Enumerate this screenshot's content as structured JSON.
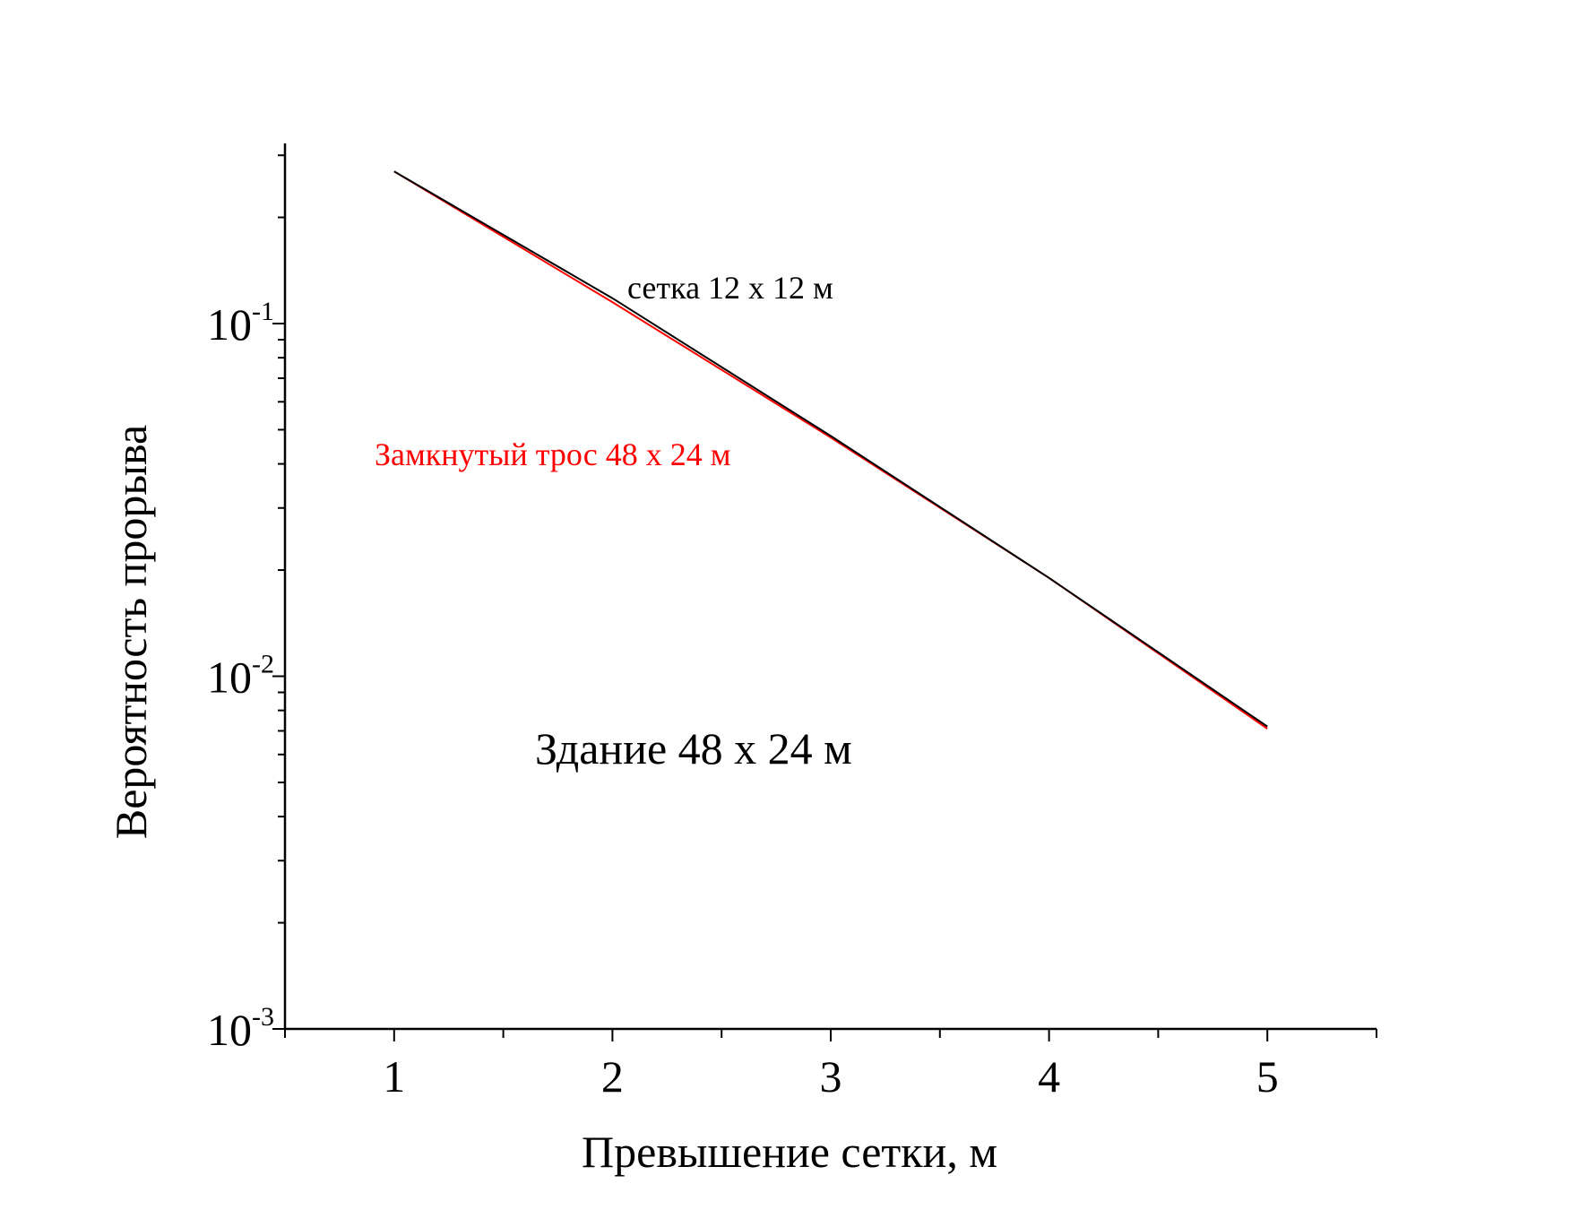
{
  "chart_data": {
    "type": "line",
    "xlabel": "Превышение сетки,  м",
    "ylabel": "Вероятность прорыва",
    "xlim": [
      0.5,
      5.5
    ],
    "ylim": [
      0.001,
      0.35
    ],
    "yscale": "log",
    "x_ticks": [
      "1",
      "2",
      "3",
      "4",
      "5"
    ],
    "y_ticks": [
      {
        "base": "10",
        "exp": "-3",
        "value": 0.001
      },
      {
        "base": "10",
        "exp": "-2",
        "value": 0.01
      },
      {
        "base": "10",
        "exp": "-1",
        "value": 0.1
      }
    ],
    "series": [
      {
        "color": "#000000",
        "x": [
          1,
          2,
          3,
          4,
          5
        ],
        "y": [
          0.27,
          0.118,
          0.048,
          0.019,
          0.0072
        ]
      },
      {
        "color": "#ff0000",
        "x": [
          1,
          2,
          3,
          4,
          5
        ],
        "y": [
          0.27,
          0.115,
          0.0475,
          0.019,
          0.0071
        ]
      }
    ],
    "annotations": [
      {
        "text": "сетка 12 x 12 м",
        "color": "#000000"
      },
      {
        "text": "Замкнутый трос 48 x 24 м",
        "color": "#ff0000"
      },
      {
        "text": "Здание 48 x 24 м",
        "color": "#000000"
      }
    ],
    "grid": false
  }
}
